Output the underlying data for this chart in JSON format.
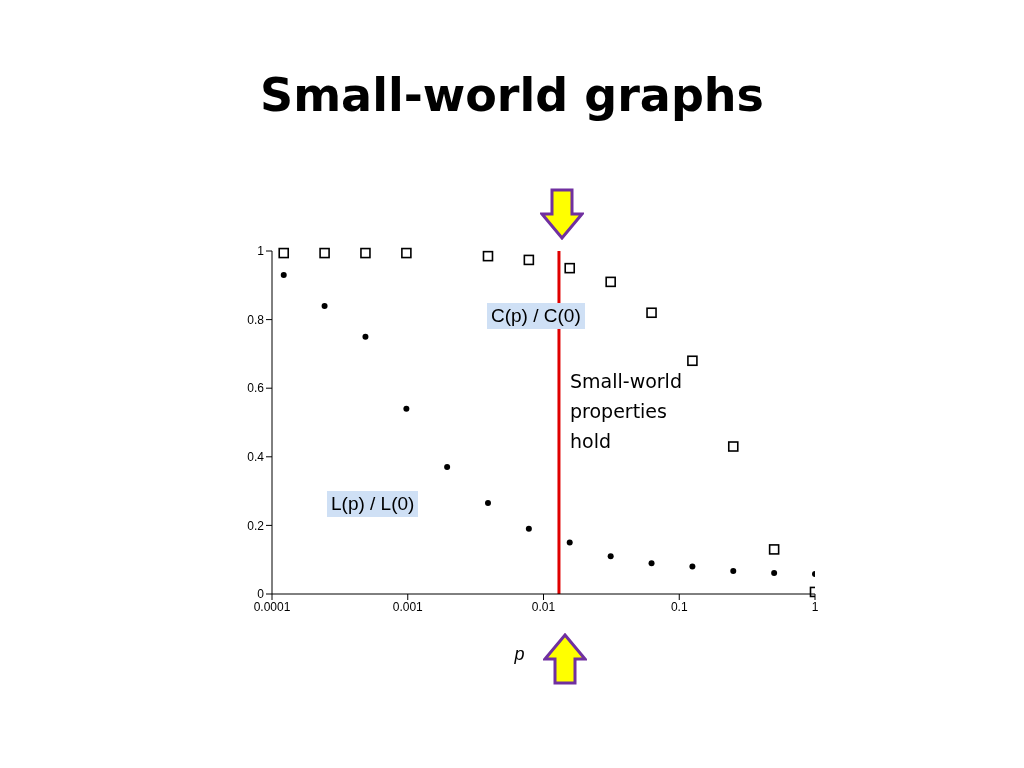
{
  "chart_data": {
    "type": "scatter",
    "title": "Small-world graphs",
    "xlabel": "p",
    "log": "x",
    "xlim": [
      0.0001,
      1
    ],
    "xticks": [
      0.0001,
      0.001,
      0.01,
      0.1,
      1
    ],
    "ylim": [
      0,
      1
    ],
    "yticks": [
      0,
      0.2,
      0.4,
      0.6,
      0.8,
      1
    ],
    "x": [
      0.000122,
      0.000244,
      0.000488,
      0.000977,
      0.00195,
      0.0039,
      0.0078,
      0.0156,
      0.03125,
      0.0625,
      0.125,
      0.25,
      0.5,
      1
    ],
    "series": [
      {
        "name": "C(p) / C(0)",
        "color": "#000000",
        "marker": "square",
        "values": [
          0.994,
          0.994,
          0.994,
          0.994,
          null,
          0.985,
          0.974,
          0.95,
          0.91,
          0.82,
          0.68,
          0.43,
          0.13,
          0.006
        ]
      },
      {
        "name": "L(p) / L(0)",
        "color": "#000000",
        "marker": "circle",
        "values": [
          0.93,
          0.84,
          0.75,
          0.54,
          0.37,
          0.265,
          0.19,
          0.15,
          0.11,
          0.09,
          0.08,
          0.067,
          0.061,
          0.058
        ]
      }
    ],
    "ref_lines": [
      {
        "axis": "x",
        "value": 0.013,
        "color": "#e00000"
      }
    ],
    "annotations": [
      "Small-world properties hold"
    ]
  }
}
